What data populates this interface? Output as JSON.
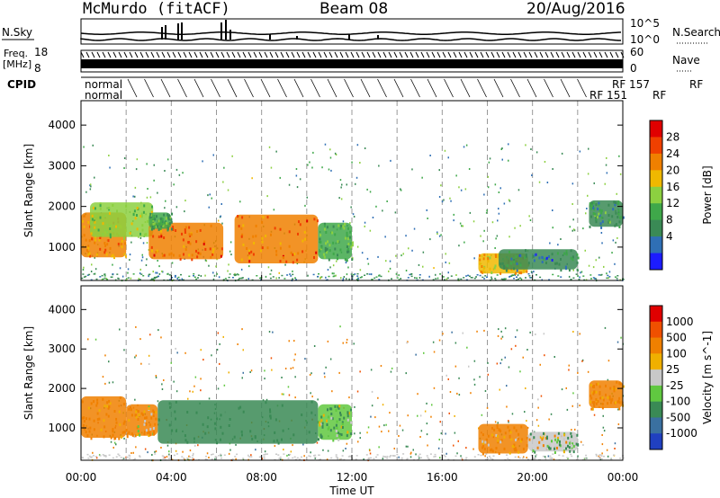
{
  "header": {
    "station": "McMurdo (fitACF)",
    "beam": "Beam 08",
    "date": "20/Aug/2016"
  },
  "strip_panels": {
    "nsky_label": "N.Sky",
    "nsky_ticks": [
      "10^5",
      "10^0"
    ],
    "nsearch_label": "N.Search",
    "freq_label_line1": "Freq.",
    "freq_label_line2": "[MHz]",
    "freq_ticks": [
      "18",
      "8"
    ],
    "nave_label": "Nave",
    "nave_ticks": [
      "60",
      "0"
    ],
    "cpid_label": "CPID",
    "cpid_normal": [
      "normal",
      "normal"
    ],
    "cpid_end_labels": [
      "RF 157",
      "RF",
      "RF 151",
      "RF"
    ]
  },
  "colors": {
    "white": "#ffffff",
    "black": "#000000",
    "grid": "#999999"
  },
  "chart_data": [
    {
      "type": "heatmap",
      "name": "power",
      "ylabel": "Slant Range [km]",
      "xlabel": "",
      "xlim_hours": [
        0,
        24
      ],
      "ylim_km": [
        180,
        4600
      ],
      "x_ticks": [
        "00:00",
        "04:00",
        "08:00",
        "12:00",
        "16:00",
        "20:00",
        "00:00"
      ],
      "y_ticks": [
        1000,
        2000,
        3000,
        4000
      ],
      "colorbar": {
        "label": "Power [dB]",
        "ticks": [
          "28",
          "24",
          "20",
          "16",
          "12",
          "8",
          "4"
        ],
        "colors": [
          "#1c1cff",
          "#2f6fb5",
          "#3a8a55",
          "#3fa84a",
          "#8cd040",
          "#f0b800",
          "#f08000",
          "#f04000",
          "#e00000"
        ]
      },
      "regions": [
        {
          "t0": 0.0,
          "t1": 2.0,
          "r0": 750,
          "r1": 1850,
          "value": 22
        },
        {
          "t0": 0.4,
          "t1": 3.2,
          "r0": 1250,
          "r1": 2100,
          "value": 16
        },
        {
          "t0": 3.0,
          "t1": 6.3,
          "r0": 700,
          "r1": 1600,
          "value": 24
        },
        {
          "t0": 3.0,
          "t1": 4.0,
          "r0": 1450,
          "r1": 1850,
          "value": 12
        },
        {
          "t0": 6.8,
          "t1": 10.5,
          "r0": 600,
          "r1": 1800,
          "value": 24
        },
        {
          "t0": 10.5,
          "t1": 12.0,
          "r0": 700,
          "r1": 1600,
          "value": 12
        },
        {
          "t0": 17.6,
          "t1": 19.8,
          "r0": 350,
          "r1": 850,
          "value": 20
        },
        {
          "t0": 18.5,
          "t1": 22.0,
          "r0": 450,
          "r1": 950,
          "value": 8
        },
        {
          "t0": 22.5,
          "t1": 24.0,
          "r0": 1500,
          "r1": 2150,
          "value": 10
        }
      ]
    },
    {
      "type": "heatmap",
      "name": "velocity",
      "ylabel": "Slant Range [km]",
      "xlabel": "Time UT",
      "xlim_hours": [
        0,
        24
      ],
      "ylim_km": [
        180,
        4600
      ],
      "x_ticks": [
        "00:00",
        "04:00",
        "08:00",
        "12:00",
        "16:00",
        "20:00",
        "00:00"
      ],
      "y_ticks": [
        1000,
        2000,
        3000,
        4000
      ],
      "colorbar": {
        "label": "Velocity [m s^-1]",
        "ticks": [
          "1000",
          "500",
          "100",
          "25",
          "-25",
          "-100",
          "-500",
          "-1000"
        ],
        "colors": [
          "#2040c0",
          "#3a70a0",
          "#3a8a55",
          "#60c840",
          "#c8c8c8",
          "#f0b000",
          "#f08000",
          "#f05000",
          "#e00000"
        ]
      },
      "regions": [
        {
          "t0": 0.0,
          "t1": 2.0,
          "r0": 750,
          "r1": 1800,
          "value": -250
        },
        {
          "t0": 2.0,
          "t1": 3.4,
          "r0": 800,
          "r1": 1600,
          "value": -150
        },
        {
          "t0": 3.4,
          "t1": 10.5,
          "r0": 600,
          "r1": 1700,
          "value": 300
        },
        {
          "t0": 10.5,
          "t1": 12.0,
          "r0": 700,
          "r1": 1600,
          "value": 80
        },
        {
          "t0": 17.6,
          "t1": 19.8,
          "r0": 350,
          "r1": 1100,
          "value": -150
        },
        {
          "t0": 19.8,
          "t1": 22.0,
          "r0": 400,
          "r1": 900,
          "value": 20
        },
        {
          "t0": 22.5,
          "t1": 24.0,
          "r0": 1500,
          "r1": 2200,
          "value": -250
        }
      ]
    }
  ]
}
